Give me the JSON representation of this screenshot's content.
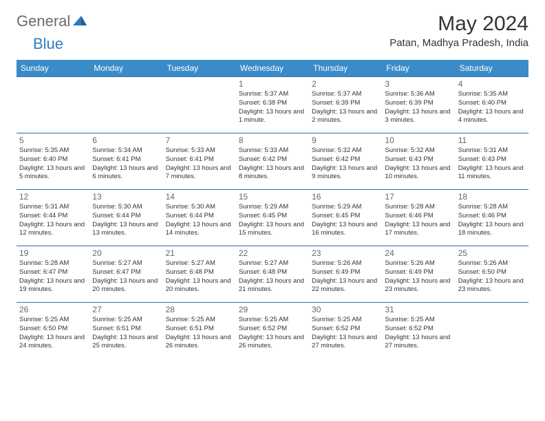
{
  "logo": {
    "part1": "General",
    "part2": "Blue"
  },
  "title": "May 2024",
  "location": "Patan, Madhya Pradesh, India",
  "dayHeaders": [
    "Sunday",
    "Monday",
    "Tuesday",
    "Wednesday",
    "Thursday",
    "Friday",
    "Saturday"
  ],
  "colors": {
    "headerBg": "#3b8bc9",
    "headerText": "#ffffff",
    "border": "#2f6fa3",
    "daynum": "#666666",
    "text": "#333333",
    "logoGray": "#6b6b6b",
    "logoBlue": "#2f7bbf"
  },
  "weeks": [
    [
      {
        "num": "",
        "sunrise": "",
        "sunset": "",
        "daylight": ""
      },
      {
        "num": "",
        "sunrise": "",
        "sunset": "",
        "daylight": ""
      },
      {
        "num": "",
        "sunrise": "",
        "sunset": "",
        "daylight": ""
      },
      {
        "num": "1",
        "sunrise": "Sunrise: 5:37 AM",
        "sunset": "Sunset: 6:38 PM",
        "daylight": "Daylight: 13 hours and 1 minute."
      },
      {
        "num": "2",
        "sunrise": "Sunrise: 5:37 AM",
        "sunset": "Sunset: 6:39 PM",
        "daylight": "Daylight: 13 hours and 2 minutes."
      },
      {
        "num": "3",
        "sunrise": "Sunrise: 5:36 AM",
        "sunset": "Sunset: 6:39 PM",
        "daylight": "Daylight: 13 hours and 3 minutes."
      },
      {
        "num": "4",
        "sunrise": "Sunrise: 5:35 AM",
        "sunset": "Sunset: 6:40 PM",
        "daylight": "Daylight: 13 hours and 4 minutes."
      }
    ],
    [
      {
        "num": "5",
        "sunrise": "Sunrise: 5:35 AM",
        "sunset": "Sunset: 6:40 PM",
        "daylight": "Daylight: 13 hours and 5 minutes."
      },
      {
        "num": "6",
        "sunrise": "Sunrise: 5:34 AM",
        "sunset": "Sunset: 6:41 PM",
        "daylight": "Daylight: 13 hours and 6 minutes."
      },
      {
        "num": "7",
        "sunrise": "Sunrise: 5:33 AM",
        "sunset": "Sunset: 6:41 PM",
        "daylight": "Daylight: 13 hours and 7 minutes."
      },
      {
        "num": "8",
        "sunrise": "Sunrise: 5:33 AM",
        "sunset": "Sunset: 6:42 PM",
        "daylight": "Daylight: 13 hours and 8 minutes."
      },
      {
        "num": "9",
        "sunrise": "Sunrise: 5:32 AM",
        "sunset": "Sunset: 6:42 PM",
        "daylight": "Daylight: 13 hours and 9 minutes."
      },
      {
        "num": "10",
        "sunrise": "Sunrise: 5:32 AM",
        "sunset": "Sunset: 6:43 PM",
        "daylight": "Daylight: 13 hours and 10 minutes."
      },
      {
        "num": "11",
        "sunrise": "Sunrise: 5:31 AM",
        "sunset": "Sunset: 6:43 PM",
        "daylight": "Daylight: 13 hours and 11 minutes."
      }
    ],
    [
      {
        "num": "12",
        "sunrise": "Sunrise: 5:31 AM",
        "sunset": "Sunset: 6:44 PM",
        "daylight": "Daylight: 13 hours and 12 minutes."
      },
      {
        "num": "13",
        "sunrise": "Sunrise: 5:30 AM",
        "sunset": "Sunset: 6:44 PM",
        "daylight": "Daylight: 13 hours and 13 minutes."
      },
      {
        "num": "14",
        "sunrise": "Sunrise: 5:30 AM",
        "sunset": "Sunset: 6:44 PM",
        "daylight": "Daylight: 13 hours and 14 minutes."
      },
      {
        "num": "15",
        "sunrise": "Sunrise: 5:29 AM",
        "sunset": "Sunset: 6:45 PM",
        "daylight": "Daylight: 13 hours and 15 minutes."
      },
      {
        "num": "16",
        "sunrise": "Sunrise: 5:29 AM",
        "sunset": "Sunset: 6:45 PM",
        "daylight": "Daylight: 13 hours and 16 minutes."
      },
      {
        "num": "17",
        "sunrise": "Sunrise: 5:28 AM",
        "sunset": "Sunset: 6:46 PM",
        "daylight": "Daylight: 13 hours and 17 minutes."
      },
      {
        "num": "18",
        "sunrise": "Sunrise: 5:28 AM",
        "sunset": "Sunset: 6:46 PM",
        "daylight": "Daylight: 13 hours and 18 minutes."
      }
    ],
    [
      {
        "num": "19",
        "sunrise": "Sunrise: 5:28 AM",
        "sunset": "Sunset: 6:47 PM",
        "daylight": "Daylight: 13 hours and 19 minutes."
      },
      {
        "num": "20",
        "sunrise": "Sunrise: 5:27 AM",
        "sunset": "Sunset: 6:47 PM",
        "daylight": "Daylight: 13 hours and 20 minutes."
      },
      {
        "num": "21",
        "sunrise": "Sunrise: 5:27 AM",
        "sunset": "Sunset: 6:48 PM",
        "daylight": "Daylight: 13 hours and 20 minutes."
      },
      {
        "num": "22",
        "sunrise": "Sunrise: 5:27 AM",
        "sunset": "Sunset: 6:48 PM",
        "daylight": "Daylight: 13 hours and 21 minutes."
      },
      {
        "num": "23",
        "sunrise": "Sunrise: 5:26 AM",
        "sunset": "Sunset: 6:49 PM",
        "daylight": "Daylight: 13 hours and 22 minutes."
      },
      {
        "num": "24",
        "sunrise": "Sunrise: 5:26 AM",
        "sunset": "Sunset: 6:49 PM",
        "daylight": "Daylight: 13 hours and 23 minutes."
      },
      {
        "num": "25",
        "sunrise": "Sunrise: 5:26 AM",
        "sunset": "Sunset: 6:50 PM",
        "daylight": "Daylight: 13 hours and 23 minutes."
      }
    ],
    [
      {
        "num": "26",
        "sunrise": "Sunrise: 5:25 AM",
        "sunset": "Sunset: 6:50 PM",
        "daylight": "Daylight: 13 hours and 24 minutes."
      },
      {
        "num": "27",
        "sunrise": "Sunrise: 5:25 AM",
        "sunset": "Sunset: 6:51 PM",
        "daylight": "Daylight: 13 hours and 25 minutes."
      },
      {
        "num": "28",
        "sunrise": "Sunrise: 5:25 AM",
        "sunset": "Sunset: 6:51 PM",
        "daylight": "Daylight: 13 hours and 26 minutes."
      },
      {
        "num": "29",
        "sunrise": "Sunrise: 5:25 AM",
        "sunset": "Sunset: 6:52 PM",
        "daylight": "Daylight: 13 hours and 26 minutes."
      },
      {
        "num": "30",
        "sunrise": "Sunrise: 5:25 AM",
        "sunset": "Sunset: 6:52 PM",
        "daylight": "Daylight: 13 hours and 27 minutes."
      },
      {
        "num": "31",
        "sunrise": "Sunrise: 5:25 AM",
        "sunset": "Sunset: 6:52 PM",
        "daylight": "Daylight: 13 hours and 27 minutes."
      },
      {
        "num": "",
        "sunrise": "",
        "sunset": "",
        "daylight": ""
      }
    ]
  ]
}
